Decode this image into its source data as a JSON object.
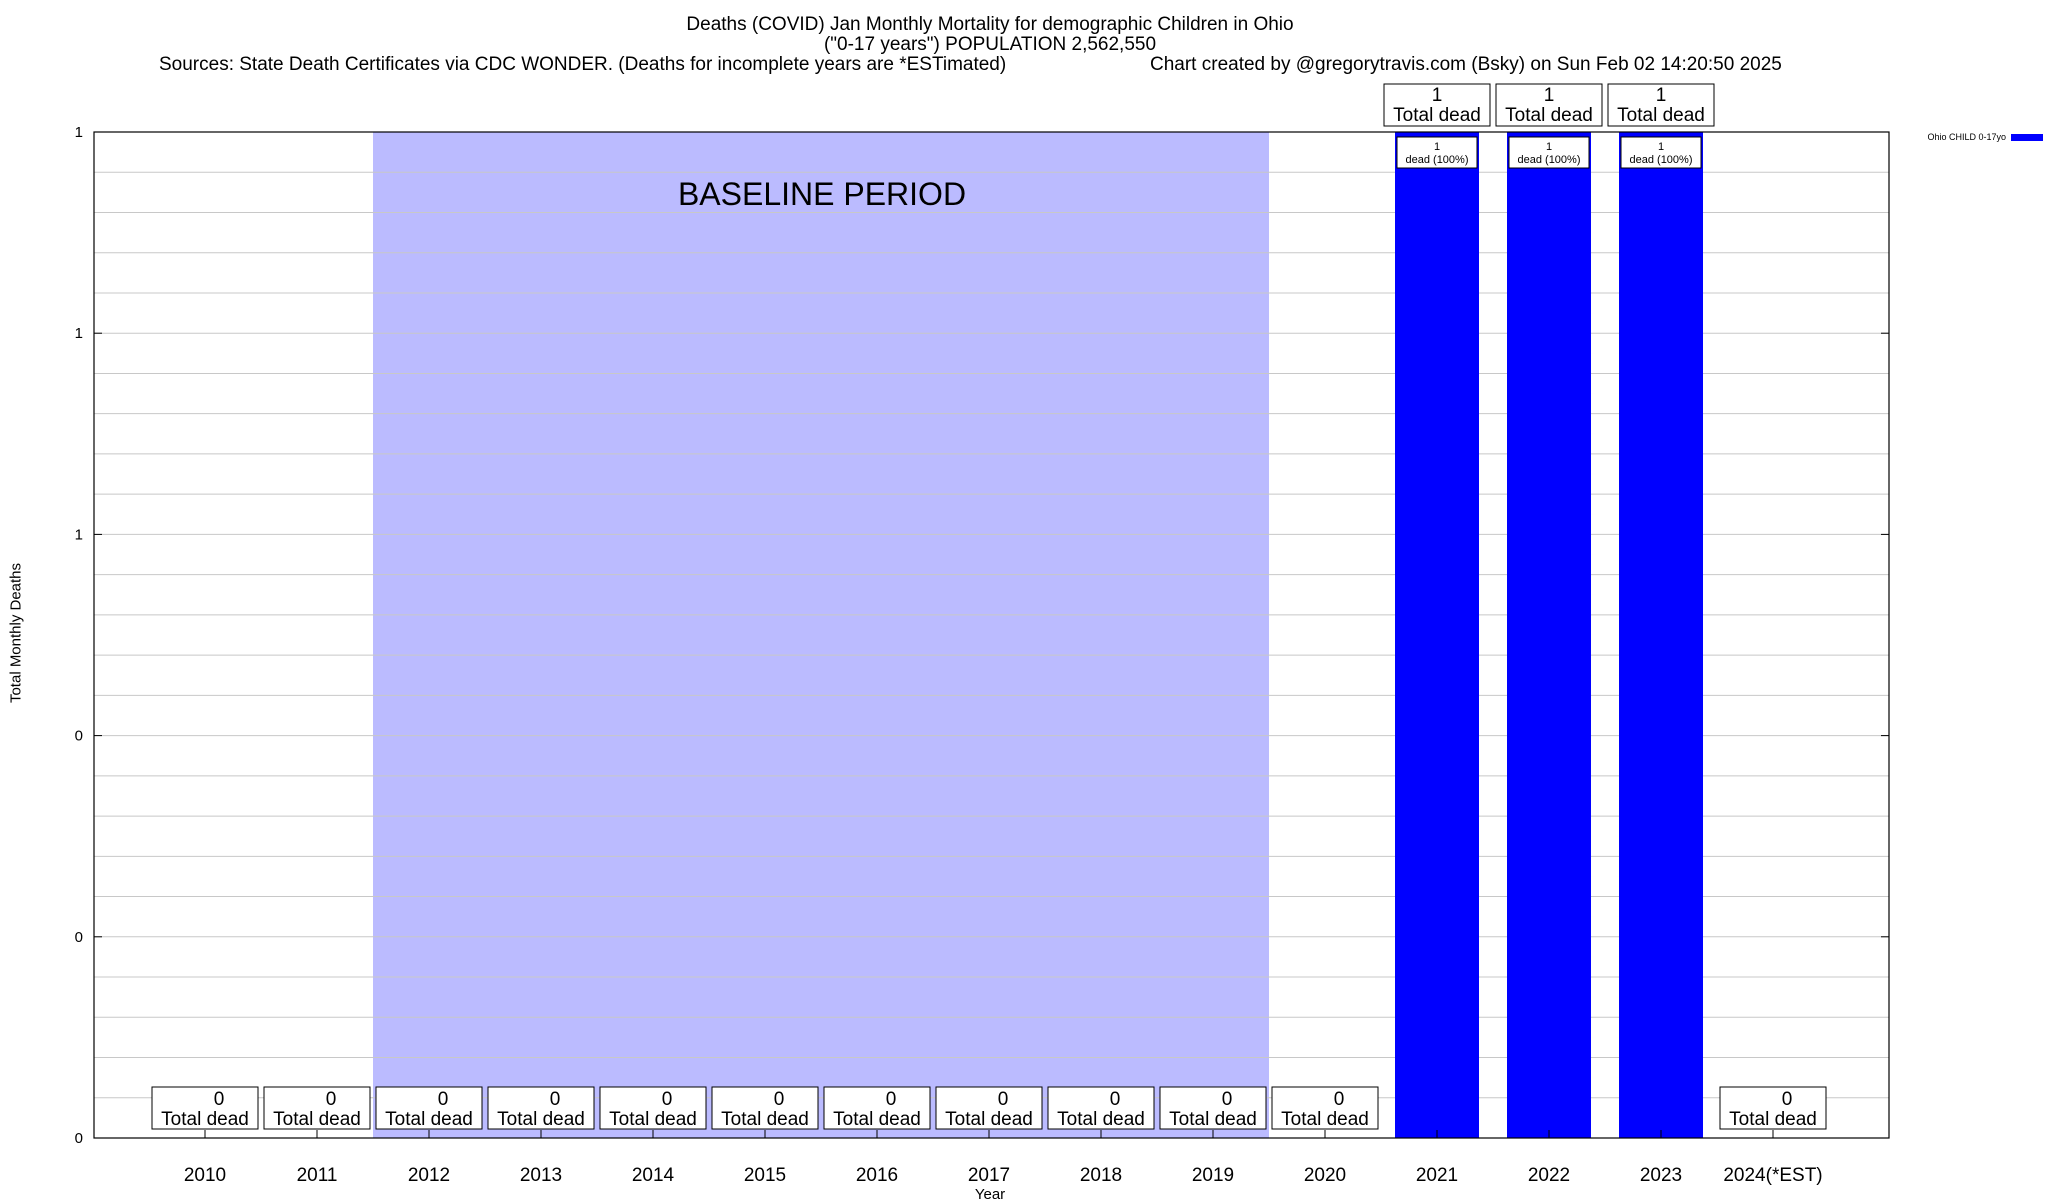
{
  "header": {
    "title_line1": "Deaths (COVID) Jan Monthly Mortality for demographic Children in Ohio",
    "title_line2": "(\"0-17 years\") POPULATION 2,562,550",
    "sources": "Sources: State Death Certificates via CDC WONDER. (Deaths for incomplete years are *ESTimated)",
    "credit": "Chart created by @gregorytravis.com (Bsky) on Sun Feb 02 14:20:50 2025"
  },
  "chart_data": {
    "type": "bar",
    "xlabel": "Year",
    "ylabel": "Total Monthly Deaths",
    "categories": [
      "2010",
      "2011",
      "2012",
      "2013",
      "2014",
      "2015",
      "2016",
      "2017",
      "2018",
      "2019",
      "2020",
      "2021",
      "2022",
      "2023",
      "2024(*EST)"
    ],
    "series": [
      {
        "name": "Ohio CHILD 0-17yo",
        "color": "#0000ff",
        "values": [
          0,
          0,
          0,
          0,
          0,
          0,
          0,
          0,
          0,
          0,
          0,
          1,
          1,
          1,
          0
        ]
      }
    ],
    "ylim": [
      0,
      1
    ],
    "ytick_labels": [
      "0",
      "0",
      "0",
      "1",
      "1",
      "1"
    ],
    "top_label_caption": "Total dead",
    "bar_inner_labels": {
      "2021": "dead (100%)",
      "2022": "dead (100%)",
      "2023": "dead (100%)"
    },
    "baseline_period": {
      "start": "2012",
      "end": "2019",
      "label": "BASELINE PERIOD",
      "color": "#bbbbff"
    },
    "grid": true,
    "legend_position": "top-right"
  }
}
